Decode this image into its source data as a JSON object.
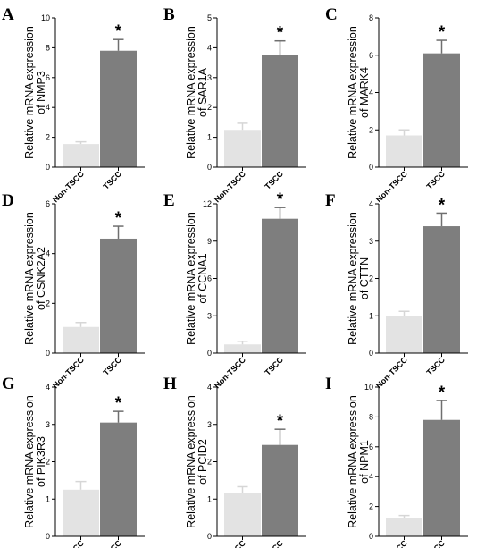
{
  "chart_data": [
    {
      "letter": "A",
      "type": "bar",
      "ylabel": [
        "Relative mRNA expression",
        "of NMP3"
      ],
      "categories": [
        "Non-TSCC",
        "TSCC"
      ],
      "values": [
        1.55,
        7.8
      ],
      "errors": [
        0.15,
        0.75
      ],
      "ylim": [
        0,
        10
      ],
      "yticks": [
        0,
        2,
        4,
        6,
        8,
        10
      ],
      "significance": "*",
      "colors": [
        "#e3e3e3",
        "#7e7e7e"
      ]
    },
    {
      "letter": "B",
      "type": "bar",
      "ylabel": [
        "Relative mRNA expression",
        "of SAR1A"
      ],
      "categories": [
        "Non-TSCC",
        "TSCC"
      ],
      "values": [
        1.25,
        3.75
      ],
      "errors": [
        0.22,
        0.48
      ],
      "ylim": [
        0,
        5
      ],
      "yticks": [
        0,
        1,
        2,
        3,
        4,
        5
      ],
      "significance": "*",
      "colors": [
        "#e3e3e3",
        "#7e7e7e"
      ]
    },
    {
      "letter": "C",
      "type": "bar",
      "ylabel": [
        "Relative mRNA expression",
        "of MARK4"
      ],
      "categories": [
        "Non-TSCC",
        "TSCC"
      ],
      "values": [
        1.7,
        6.1
      ],
      "errors": [
        0.3,
        0.7
      ],
      "ylim": [
        0,
        8
      ],
      "yticks": [
        0,
        2,
        4,
        6,
        8
      ],
      "significance": "*",
      "colors": [
        "#e3e3e3",
        "#7e7e7e"
      ]
    },
    {
      "letter": "D",
      "type": "bar",
      "ylabel": [
        "Relative mRNA expression",
        "of CSNK2A2"
      ],
      "categories": [
        "Non-TSCC",
        "TSCC"
      ],
      "values": [
        1.05,
        4.6
      ],
      "errors": [
        0.18,
        0.5
      ],
      "ylim": [
        0,
        6
      ],
      "yticks": [
        0,
        2,
        4,
        6
      ],
      "significance": "*",
      "colors": [
        "#e3e3e3",
        "#7e7e7e"
      ]
    },
    {
      "letter": "E",
      "type": "bar",
      "ylabel": [
        "Relative mRNA expression",
        "of CCNA1"
      ],
      "categories": [
        "Non-TSCC",
        "TSCC"
      ],
      "values": [
        0.7,
        10.8
      ],
      "errors": [
        0.25,
        0.9
      ],
      "ylim": [
        0,
        12
      ],
      "yticks": [
        0,
        3,
        6,
        9,
        12
      ],
      "significance": "*",
      "colors": [
        "#e3e3e3",
        "#7e7e7e"
      ]
    },
    {
      "letter": "F",
      "type": "bar",
      "ylabel": [
        "Relative mRNA expression",
        "of CTTN"
      ],
      "categories": [
        "Non-TSCC",
        "TSCC"
      ],
      "values": [
        1.0,
        3.4
      ],
      "errors": [
        0.12,
        0.35
      ],
      "ylim": [
        0,
        4
      ],
      "yticks": [
        0,
        1,
        2,
        3,
        4
      ],
      "significance": "*",
      "colors": [
        "#e3e3e3",
        "#7e7e7e"
      ]
    },
    {
      "letter": "G",
      "type": "bar",
      "ylabel": [
        "Relative mRNA expression",
        "of PIK3R3"
      ],
      "categories": [
        "Non-TSCC",
        "TSCC"
      ],
      "values": [
        1.25,
        3.05
      ],
      "errors": [
        0.22,
        0.3
      ],
      "ylim": [
        0,
        4
      ],
      "yticks": [
        0,
        1,
        2,
        3,
        4
      ],
      "significance": "*",
      "colors": [
        "#e3e3e3",
        "#7e7e7e"
      ]
    },
    {
      "letter": "H",
      "type": "bar",
      "ylabel": [
        "Relative mRNA expression",
        "of PCID2"
      ],
      "categories": [
        "Non-TSCC",
        "TSCC"
      ],
      "values": [
        1.15,
        2.45
      ],
      "errors": [
        0.18,
        0.42
      ],
      "ylim": [
        0,
        4
      ],
      "yticks": [
        0,
        1,
        2,
        3,
        4
      ],
      "significance": "*",
      "colors": [
        "#e3e3e3",
        "#7e7e7e"
      ]
    },
    {
      "letter": "I",
      "type": "bar",
      "ylabel": [
        "Relative mRNA expression",
        "of NPM1"
      ],
      "categories": [
        "Non-TSCC",
        "TSCC"
      ],
      "values": [
        1.2,
        7.8
      ],
      "errors": [
        0.2,
        1.3
      ],
      "ylim": [
        0,
        10
      ],
      "yticks": [
        0,
        2,
        4,
        6,
        8,
        10
      ],
      "significance": "*",
      "colors": [
        "#e3e3e3",
        "#7e7e7e"
      ]
    }
  ]
}
